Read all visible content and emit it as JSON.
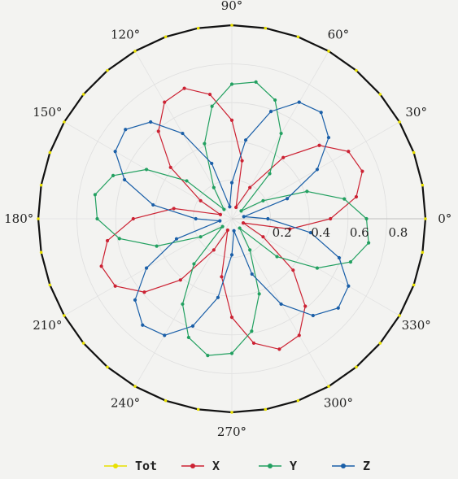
{
  "chart_data": {
    "type": "polar-line",
    "angle_unit": "deg",
    "angular_ticks": [
      {
        "angle": 0,
        "label": "0°"
      },
      {
        "angle": 30,
        "label": "30°"
      },
      {
        "angle": 60,
        "label": "60°"
      },
      {
        "angle": 90,
        "label": "90°"
      },
      {
        "angle": 120,
        "label": "120°"
      },
      {
        "angle": 150,
        "label": "150°"
      },
      {
        "angle": 180,
        "label": "180°"
      },
      {
        "angle": 210,
        "label": "210°"
      },
      {
        "angle": 240,
        "label": "240°"
      },
      {
        "angle": 270,
        "label": "270°"
      },
      {
        "angle": 300,
        "label": "300°"
      },
      {
        "angle": 330,
        "label": "330°"
      }
    ],
    "radial_ticks": [
      "0.2",
      "0.4",
      "0.6",
      "0.8"
    ],
    "rlim": [
      0,
      1
    ],
    "grid": true,
    "legend": "bottom",
    "series": [
      {
        "name": "Tot",
        "color": "#e8e000",
        "marker": "circle",
        "formula": "1.0",
        "angle_step": 10
      },
      {
        "name": "X",
        "color": "#cc2233",
        "marker": "circle",
        "formula": "0.72*|cos(2θ - 45°)|",
        "angle_step": 10
      },
      {
        "name": "Y",
        "color": "#22a060",
        "marker": "circle",
        "formula": "0.72*|cos(2θ - 165°)|",
        "angle_step": 10
      },
      {
        "name": "Z",
        "color": "#1a5fa8",
        "marker": "circle",
        "formula": "0.72*|cos(2θ - 285°)|",
        "angle_step": 10
      }
    ]
  }
}
